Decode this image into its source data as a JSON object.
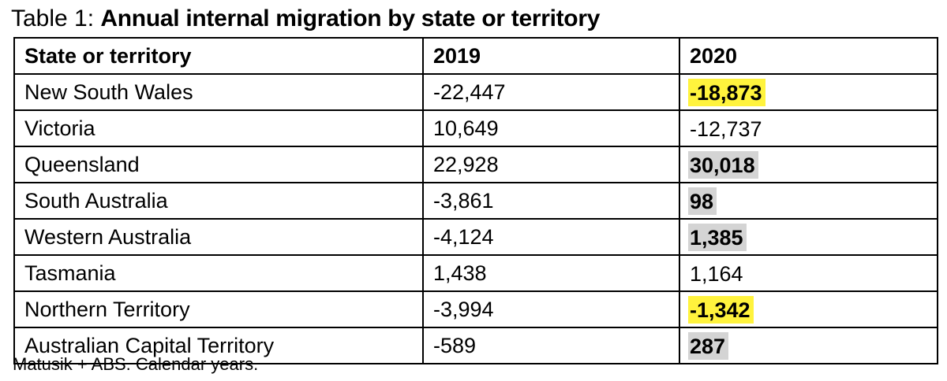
{
  "title": {
    "prefix": "Table 1:",
    "main": "Annual internal migration by state or territory"
  },
  "table": {
    "headers": [
      "State or territory",
      "2019",
      "2020"
    ],
    "rows": [
      {
        "state": "New South Wales",
        "y2019": "-22,447",
        "y2020": "-18,873",
        "highlight": "#fff33d",
        "bold": true
      },
      {
        "state": "Victoria",
        "y2019": "10,649",
        "y2020": "-12,737",
        "highlight": "",
        "bold": false
      },
      {
        "state": "Queensland",
        "y2019": "22,928",
        "y2020": "30,018",
        "highlight": "#d4d4d4",
        "bold": true
      },
      {
        "state": "South Australia",
        "y2019": "-3,861",
        "y2020": "98",
        "highlight": "#d4d4d4",
        "bold": true
      },
      {
        "state": "Western Australia",
        "y2019": "-4,124",
        "y2020": "1,385",
        "highlight": "#d4d4d4",
        "bold": true
      },
      {
        "state": "Tasmania",
        "y2019": "1,438",
        "y2020": "1,164",
        "highlight": "",
        "bold": false
      },
      {
        "state": "Northern Territory",
        "y2019": "-3,994",
        "y2020": "-1,342",
        "highlight": "#fff33d",
        "bold": true
      },
      {
        "state": "Australian Capital Territory",
        "y2019": "-589",
        "y2020": "287",
        "highlight": "#d4d4d4",
        "bold": true
      }
    ]
  },
  "footnote": "Matusik + ABS.  Calendar years."
}
